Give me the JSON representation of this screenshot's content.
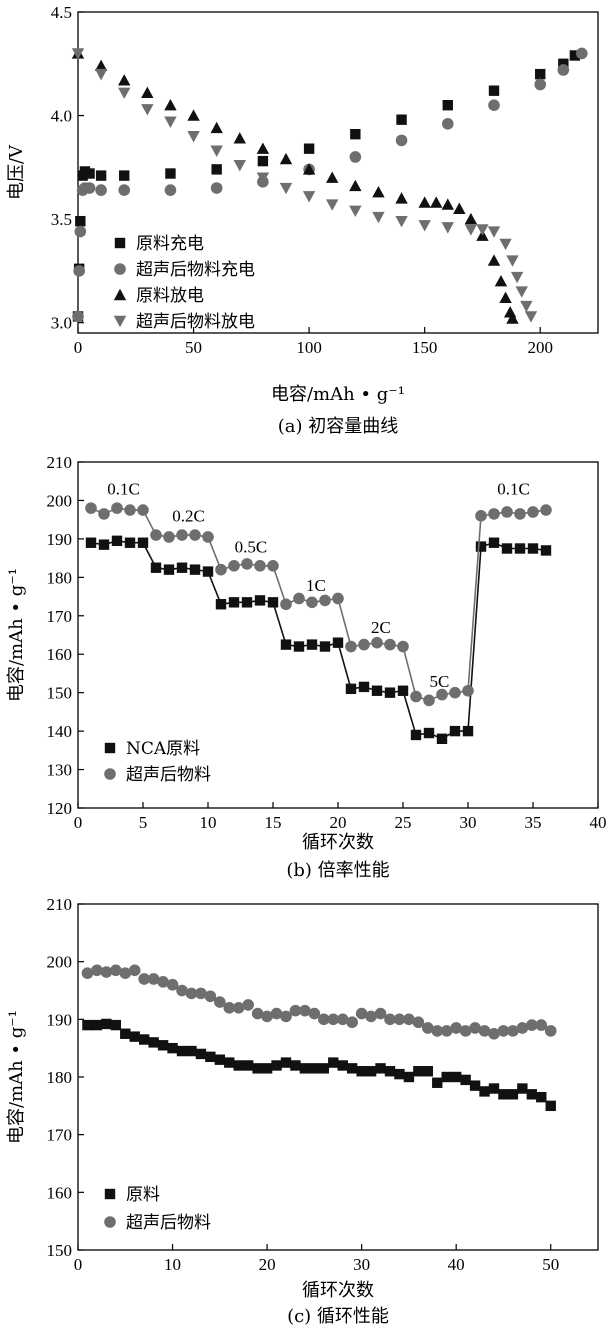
{
  "colors": {
    "black_series": "#111111",
    "gray_series": "#6e6e6e",
    "axis": "#000000"
  },
  "chart_data": [
    {
      "type": "scatter",
      "caption": "(a) 初容量曲线",
      "xlabel": "电容/mAh • g⁻¹",
      "ylabel": "电压/V",
      "xlim": [
        0,
        225
      ],
      "ylim": [
        2.95,
        4.5
      ],
      "xticks": [
        0,
        50,
        100,
        150,
        200
      ],
      "yticks": [
        3.0,
        3.5,
        4.0,
        4.5
      ],
      "xtick_labels": [
        "0",
        "50",
        "100",
        "150",
        "200"
      ],
      "ytick_labels": [
        "3.0",
        "3.5",
        "4.0",
        "4.5"
      ],
      "legend_position": "lower-left",
      "series": [
        {
          "name": "原料充电",
          "marker": "square",
          "color": "#111111",
          "x": [
            0,
            0.5,
            1,
            2,
            3,
            5,
            10,
            20,
            40,
            60,
            80,
            100,
            120,
            140,
            160,
            180,
            200,
            210,
            215
          ],
          "y": [
            3.03,
            3.26,
            3.49,
            3.71,
            3.73,
            3.72,
            3.71,
            3.71,
            3.72,
            3.74,
            3.78,
            3.84,
            3.91,
            3.98,
            4.05,
            4.12,
            4.2,
            4.25,
            4.29
          ]
        },
        {
          "name": "超声后物料充电",
          "marker": "circle",
          "color": "#6e6e6e",
          "x": [
            0,
            0.5,
            1,
            2,
            3,
            5,
            10,
            20,
            40,
            60,
            80,
            100,
            120,
            140,
            160,
            180,
            200,
            210,
            218
          ],
          "y": [
            3.03,
            3.25,
            3.44,
            3.64,
            3.65,
            3.65,
            3.64,
            3.64,
            3.64,
            3.65,
            3.68,
            3.74,
            3.8,
            3.88,
            3.96,
            4.05,
            4.15,
            4.22,
            4.3
          ]
        },
        {
          "name": "原料放电",
          "marker": "triangle-up",
          "color": "#111111",
          "x": [
            0,
            10,
            20,
            30,
            40,
            50,
            60,
            70,
            80,
            90,
            100,
            110,
            120,
            130,
            140,
            150,
            155,
            160,
            165,
            170,
            175,
            180,
            183,
            185,
            187,
            188
          ],
          "y": [
            4.3,
            4.24,
            4.17,
            4.11,
            4.05,
            4.0,
            3.94,
            3.89,
            3.84,
            3.79,
            3.74,
            3.7,
            3.66,
            3.63,
            3.6,
            3.58,
            3.58,
            3.57,
            3.55,
            3.5,
            3.42,
            3.3,
            3.2,
            3.12,
            3.05,
            3.02
          ]
        },
        {
          "name": "超声后物料放电",
          "marker": "triangle-down",
          "color": "#6e6e6e",
          "x": [
            0,
            10,
            20,
            30,
            40,
            50,
            60,
            70,
            80,
            90,
            100,
            110,
            120,
            130,
            140,
            150,
            160,
            170,
            175,
            180,
            185,
            188,
            190,
            192,
            194,
            196
          ],
          "y": [
            4.3,
            4.2,
            4.11,
            4.03,
            3.97,
            3.9,
            3.83,
            3.76,
            3.7,
            3.65,
            3.61,
            3.57,
            3.54,
            3.51,
            3.49,
            3.47,
            3.46,
            3.45,
            3.45,
            3.44,
            3.38,
            3.3,
            3.22,
            3.15,
            3.08,
            3.03
          ]
        }
      ]
    },
    {
      "type": "line",
      "caption": "(b) 倍率性能",
      "xlabel": "循环次数",
      "ylabel": "电容/mAh • g⁻¹",
      "xlim": [
        0,
        40
      ],
      "ylim": [
        120,
        210
      ],
      "xticks": [
        0,
        5,
        10,
        15,
        20,
        25,
        30,
        35,
        40
      ],
      "yticks": [
        120,
        130,
        140,
        150,
        160,
        170,
        180,
        190,
        200,
        210
      ],
      "xtick_labels": [
        "0",
        "5",
        "10",
        "15",
        "20",
        "25",
        "30",
        "35",
        "40"
      ],
      "ytick_labels": [
        "120",
        "130",
        "140",
        "150",
        "160",
        "170",
        "180",
        "190",
        "200",
        "210"
      ],
      "legend_position": "lower-left",
      "annotations": [
        {
          "text": "0.1C",
          "x": 3.5,
          "y": 201.5
        },
        {
          "text": "0.2C",
          "x": 8.5,
          "y": 194.5
        },
        {
          "text": "0.5C",
          "x": 13.3,
          "y": 186.5
        },
        {
          "text": "1C",
          "x": 18.3,
          "y": 176.5
        },
        {
          "text": "2C",
          "x": 23.3,
          "y": 165.5
        },
        {
          "text": "5C",
          "x": 27.8,
          "y": 151.5
        },
        {
          "text": "0.1C",
          "x": 33.5,
          "y": 201.5
        }
      ],
      "series": [
        {
          "name": "NCA原料",
          "marker": "square",
          "color": "#111111",
          "x": [
            1,
            2,
            3,
            4,
            5,
            6,
            7,
            8,
            9,
            10,
            11,
            12,
            13,
            14,
            15,
            16,
            17,
            18,
            19,
            20,
            21,
            22,
            23,
            24,
            25,
            26,
            27,
            28,
            29,
            30,
            31,
            32,
            33,
            34,
            35,
            36
          ],
          "y": [
            189,
            188.5,
            189.5,
            189,
            189,
            182.5,
            182,
            182.5,
            182,
            181.5,
            173,
            173.5,
            173.5,
            174,
            173.5,
            162.5,
            162,
            162.5,
            162,
            163,
            151,
            151.5,
            150.5,
            150,
            150.5,
            139,
            139.5,
            138,
            140,
            140,
            188,
            189,
            187.5,
            187.5,
            187.5,
            187
          ]
        },
        {
          "name": "超声后物料",
          "marker": "circle",
          "color": "#6e6e6e",
          "x": [
            1,
            2,
            3,
            4,
            5,
            6,
            7,
            8,
            9,
            10,
            11,
            12,
            13,
            14,
            15,
            16,
            17,
            18,
            19,
            20,
            21,
            22,
            23,
            24,
            25,
            26,
            27,
            28,
            29,
            30,
            31,
            32,
            33,
            34,
            35,
            36
          ],
          "y": [
            198,
            196.5,
            198,
            197.5,
            197.5,
            191,
            190.5,
            191,
            191,
            190.5,
            182,
            183,
            183.5,
            183,
            183,
            173,
            174.5,
            173.5,
            174,
            174.5,
            162,
            162.5,
            163,
            162.5,
            162,
            149,
            148,
            149.5,
            150,
            150.5,
            196,
            196.5,
            197,
            196.5,
            197,
            197.5
          ]
        }
      ]
    },
    {
      "type": "scatter",
      "caption": "(c) 循环性能",
      "xlabel": "循环次数",
      "ylabel": "电容/mAh • g⁻¹",
      "xlim": [
        0,
        55
      ],
      "ylim": [
        150,
        210
      ],
      "xticks": [
        0,
        10,
        20,
        30,
        40,
        50
      ],
      "yticks": [
        150,
        160,
        170,
        180,
        190,
        200,
        210
      ],
      "xtick_labels": [
        "0",
        "10",
        "20",
        "30",
        "40",
        "50"
      ],
      "ytick_labels": [
        "150",
        "160",
        "170",
        "180",
        "190",
        "200",
        "210"
      ],
      "legend_position": "lower-left",
      "series": [
        {
          "name": "原料",
          "marker": "square",
          "color": "#111111",
          "x": [
            1,
            2,
            3,
            4,
            5,
            6,
            7,
            8,
            9,
            10,
            11,
            12,
            13,
            14,
            15,
            16,
            17,
            18,
            19,
            20,
            21,
            22,
            23,
            24,
            25,
            26,
            27,
            28,
            29,
            30,
            31,
            32,
            33,
            34,
            35,
            36,
            37,
            38,
            39,
            40,
            41,
            42,
            43,
            44,
            45,
            46,
            47,
            48,
            49,
            50
          ],
          "y": [
            189,
            189,
            189.2,
            189,
            187.5,
            187,
            186.5,
            186,
            185.5,
            185,
            184.5,
            184.5,
            184,
            183.5,
            183,
            182.5,
            182,
            182,
            181.5,
            181.5,
            182,
            182.5,
            182,
            181.5,
            181.5,
            181.5,
            182.5,
            182,
            181.5,
            181,
            181,
            181.5,
            181,
            180.5,
            180,
            181,
            181,
            179,
            180,
            180,
            179.5,
            178.5,
            177.5,
            178,
            177,
            177,
            178,
            177,
            176.5,
            175
          ]
        },
        {
          "name": "超声后物料",
          "marker": "circle",
          "color": "#6e6e6e",
          "x": [
            1,
            2,
            3,
            4,
            5,
            6,
            7,
            8,
            9,
            10,
            11,
            12,
            13,
            14,
            15,
            16,
            17,
            18,
            19,
            20,
            21,
            22,
            23,
            24,
            25,
            26,
            27,
            28,
            29,
            30,
            31,
            32,
            33,
            34,
            35,
            36,
            37,
            38,
            39,
            40,
            41,
            42,
            43,
            44,
            45,
            46,
            47,
            48,
            49,
            50
          ],
          "y": [
            198,
            198.5,
            198.2,
            198.5,
            198,
            198.5,
            197,
            197,
            196.5,
            196,
            195,
            194.5,
            194.5,
            194,
            193,
            192,
            192,
            192.5,
            191,
            190.5,
            191,
            190.5,
            191.5,
            191.5,
            191,
            190,
            190,
            190,
            189.5,
            191,
            190.5,
            191,
            190,
            190,
            190,
            189.5,
            188.5,
            188,
            188,
            188.5,
            188,
            188.5,
            188,
            187.5,
            188,
            188,
            188.5,
            189,
            189,
            188
          ]
        }
      ]
    }
  ]
}
